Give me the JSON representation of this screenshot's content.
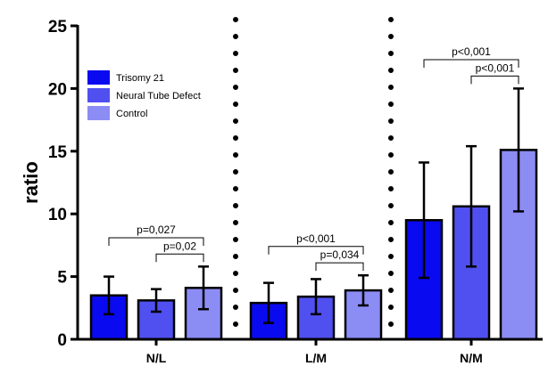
{
  "chart_data": {
    "type": "bar",
    "ylabel": "ratio",
    "ylim": [
      0,
      25
    ],
    "yticks": [
      0,
      5,
      10,
      15,
      20,
      25
    ],
    "categories": [
      "N/L",
      "L/M",
      "N/M"
    ],
    "series": [
      {
        "name": "Trisomy 21",
        "color": "#0a0af0",
        "values": [
          3.5,
          2.9,
          9.5
        ],
        "errors": [
          1.5,
          1.6,
          4.6
        ]
      },
      {
        "name": "Neural Tube Defect",
        "color": "#5050f0",
        "values": [
          3.1,
          3.4,
          10.6
        ],
        "errors": [
          0.9,
          1.4,
          4.8
        ]
      },
      {
        "name": "Control",
        "color": "#8c8cf5",
        "values": [
          4.1,
          3.9,
          15.1
        ],
        "errors": [
          1.7,
          1.2,
          4.9
        ]
      }
    ],
    "legend": {
      "position": "top-left"
    },
    "annotations": [
      {
        "group": 0,
        "from": 0,
        "to": 2,
        "label": "p=0,027"
      },
      {
        "group": 0,
        "from": 1,
        "to": 2,
        "label": "p=0,02"
      },
      {
        "group": 1,
        "from": 0,
        "to": 2,
        "label": "p<0,001"
      },
      {
        "group": 1,
        "from": 1,
        "to": 2,
        "label": "p=0,034"
      },
      {
        "group": 2,
        "from": 0,
        "to": 2,
        "label": "p<0,001"
      },
      {
        "group": 2,
        "from": 1,
        "to": 2,
        "label": "p<0,001"
      }
    ]
  }
}
